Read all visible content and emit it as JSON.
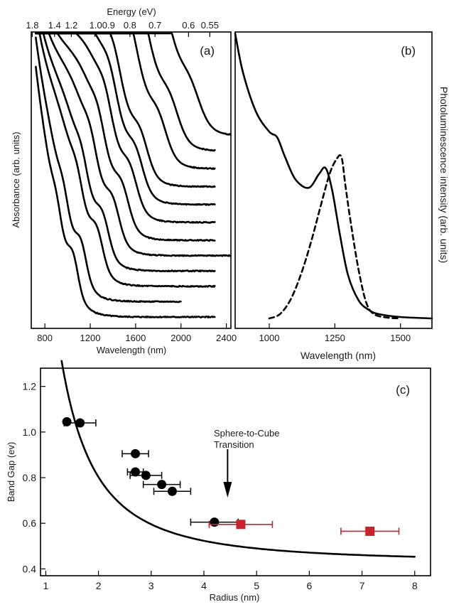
{
  "chart_data": [
    {
      "panel": "(a)",
      "type": "line",
      "xlabel": "Wavelength (nm)",
      "ylabel": "Absorbance (arb. units)",
      "top_axis_label": "Energy (eV)",
      "xlim": [
        680,
        2440
      ],
      "x_ticks": [
        "800",
        "1200",
        "1600",
        "2000",
        "2400"
      ],
      "top_ticks": [
        "1.8",
        "1.4",
        "1.2",
        "1.0",
        "0.9",
        "0.8",
        "0.7",
        "0.6",
        "0.55"
      ],
      "top_tick_labels": [
        "1.8",
        "1.4",
        "1.2",
        "1.00.9",
        "0.8",
        "0.7",
        "0.6",
        "0.55"
      ],
      "y_units": "arbitrary, curves vertically offset",
      "series": [
        {
          "first_peak_nm": 1050,
          "end_nm": 2300,
          "baseline": 0.0
        },
        {
          "first_peak_nm": 1120,
          "end_nm": 2000,
          "baseline": 0.06
        },
        {
          "first_peak_nm": 1260,
          "end_nm": 2300,
          "baseline": 0.12
        },
        {
          "first_peak_nm": 1310,
          "end_nm": 2300,
          "baseline": 0.18
        },
        {
          "first_peak_nm": 1400,
          "end_nm": 2440,
          "baseline": 0.24
        },
        {
          "first_peak_nm": 1480,
          "end_nm": 2300,
          "baseline": 0.3
        },
        {
          "first_peak_nm": 1550,
          "end_nm": 2300,
          "baseline": 0.37
        },
        {
          "first_peak_nm": 1600,
          "end_nm": 2300,
          "baseline": 0.44
        },
        {
          "first_peak_nm": 1640,
          "end_nm": 2300,
          "baseline": 0.51
        },
        {
          "first_peak_nm": 1800,
          "end_nm": 2300,
          "baseline": 0.58
        },
        {
          "first_peak_nm": 1900,
          "end_nm": 2300,
          "baseline": 0.65
        },
        {
          "first_peak_nm": 2080,
          "end_nm": 2440,
          "baseline": 0.71
        }
      ]
    },
    {
      "panel": "(b)",
      "type": "line",
      "xlabel": "Wavelength (nm)",
      "ylabel": "Photoluminescence intensity (arb. units)",
      "xlim": [
        870,
        1620
      ],
      "x_ticks": [
        "1000",
        "1250",
        "1500"
      ],
      "series": [
        {
          "style": "solid",
          "x": [
            870,
            900,
            950,
            1000,
            1030,
            1060,
            1100,
            1150,
            1190,
            1215,
            1240,
            1270,
            1300,
            1340,
            1380,
            1420,
            1500,
            1620
          ],
          "y": [
            1.02,
            0.88,
            0.74,
            0.67,
            0.65,
            0.58,
            0.5,
            0.47,
            0.52,
            0.54,
            0.46,
            0.3,
            0.16,
            0.07,
            0.035,
            0.02,
            0.01,
            0.005
          ]
        },
        {
          "style": "dashed",
          "x": [
            1000,
            1040,
            1080,
            1120,
            1160,
            1200,
            1230,
            1255,
            1275,
            1290,
            1310,
            1340,
            1370,
            1400,
            1450,
            1500
          ],
          "y": [
            0.005,
            0.02,
            0.07,
            0.16,
            0.28,
            0.42,
            0.52,
            0.57,
            0.58,
            0.48,
            0.35,
            0.18,
            0.06,
            0.02,
            0.008,
            0.005
          ]
        }
      ]
    },
    {
      "panel": "(c)",
      "type": "scatter",
      "xlabel": "Radius (nm)",
      "ylabel": "Band Gap (ev)",
      "xlim": [
        0.9,
        8.3
      ],
      "ylim": [
        0.37,
        1.28
      ],
      "x_ticks": [
        "1",
        "2",
        "3",
        "4",
        "5",
        "6",
        "7",
        "8"
      ],
      "y_ticks": [
        "0.4",
        "0.6",
        "0.8",
        "1.0",
        "1.2"
      ],
      "annotation": "Sphere-to-Cube Transition",
      "annotation_lines": [
        "Sphere-to-Cube",
        "Transition"
      ],
      "arrow_x": 4.45,
      "circles": [
        {
          "x": 1.4,
          "y": 1.045,
          "xerr": 0
        },
        {
          "x": 1.65,
          "y": 1.04,
          "xerr": 0.3
        },
        {
          "x": 2.7,
          "y": 0.905,
          "xerr": 0.25
        },
        {
          "x": 2.7,
          "y": 0.825,
          "xerr": 0.15
        },
        {
          "x": 2.9,
          "y": 0.81,
          "xerr": 0.3
        },
        {
          "x": 3.2,
          "y": 0.77,
          "xerr": 0.35
        },
        {
          "x": 3.4,
          "y": 0.74,
          "xerr": 0.35
        },
        {
          "x": 4.2,
          "y": 0.605,
          "xerr": 0.45
        }
      ],
      "squares": [
        {
          "x": 4.7,
          "y": 0.595,
          "xerr": 0.6
        },
        {
          "x": 7.15,
          "y": 0.565,
          "xerr": 0.55
        }
      ],
      "fit": {
        "form": "0.43 + 1.49/r^2",
        "x_from": 1.3,
        "x_to": 8.0
      },
      "colors": {
        "circle": "#000000",
        "square": "#c8232c",
        "square_err": "#c8232c"
      }
    }
  ]
}
